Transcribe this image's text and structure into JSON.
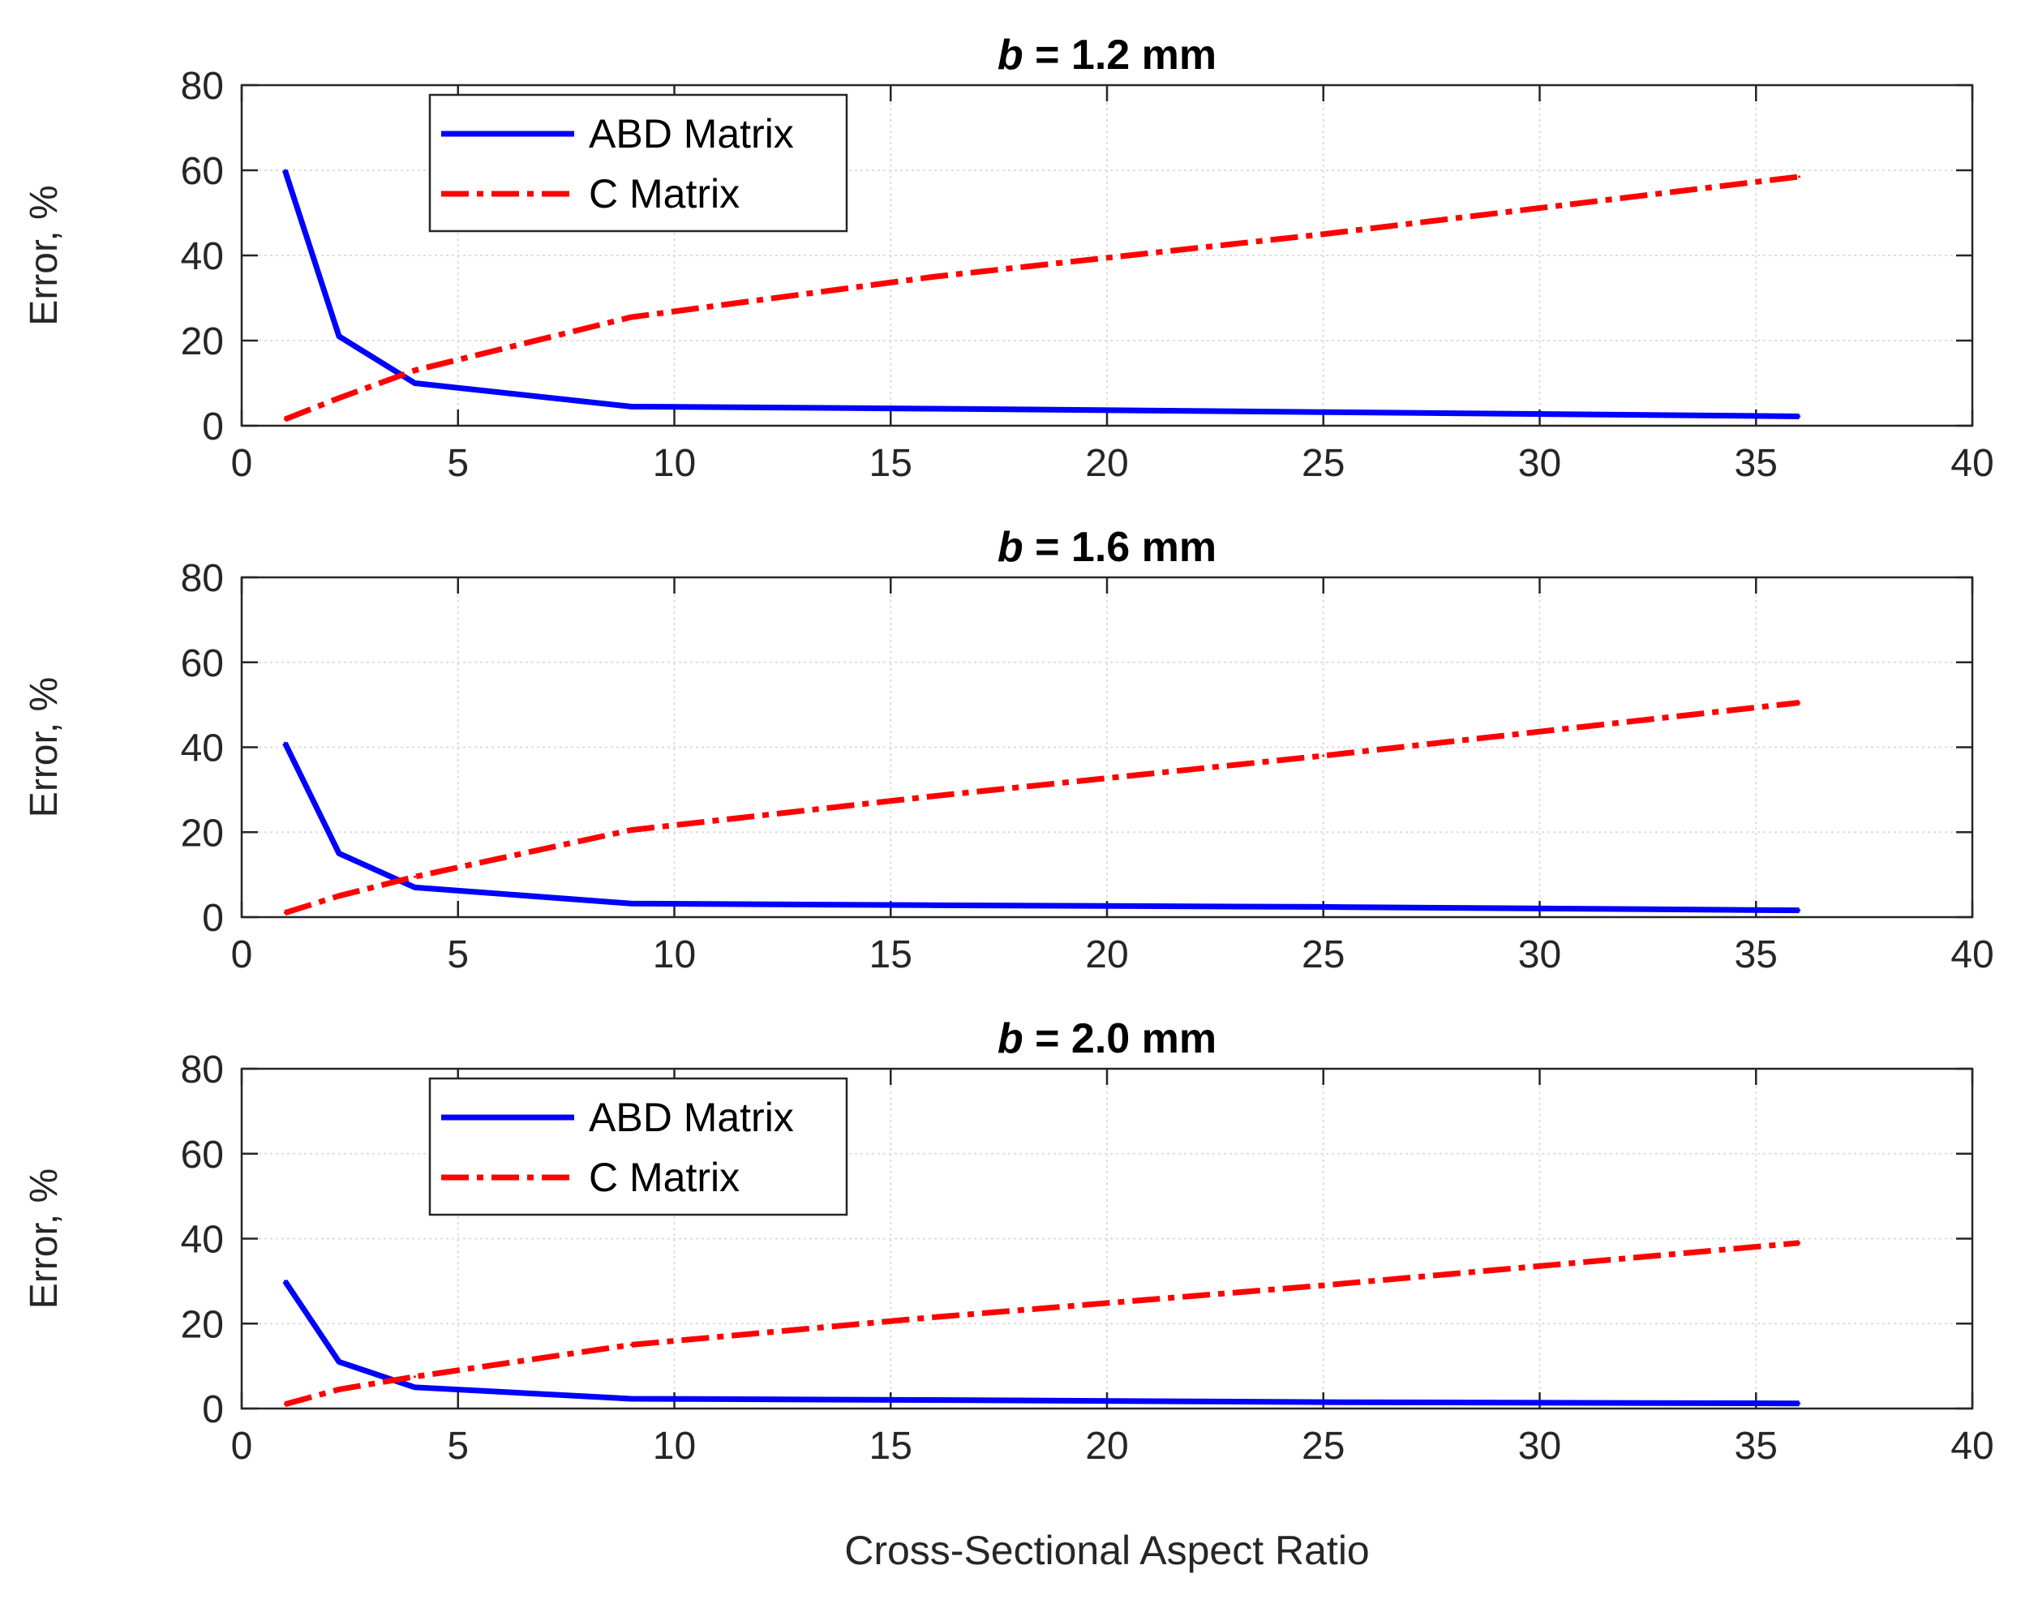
{
  "chart_data": [
    {
      "type": "line",
      "title": "b = 1.2 mm",
      "title_var": "b",
      "title_rest": " = 1.2 mm",
      "xlabel": "",
      "ylabel": "Error, %",
      "xlim": [
        0,
        40
      ],
      "ylim": [
        0,
        80
      ],
      "xticks": [
        0,
        5,
        10,
        15,
        20,
        25,
        30,
        35,
        40
      ],
      "yticks": [
        0,
        20,
        40,
        60,
        80
      ],
      "grid": true,
      "legend": {
        "show": true,
        "placement": "top-left"
      },
      "series": [
        {
          "name": "ABD Matrix",
          "color": "#0000ff",
          "style": "solid",
          "x": [
            1,
            2.25,
            4,
            9,
            16,
            25,
            36
          ],
          "y": [
            60,
            21,
            10,
            4.5,
            4,
            3.2,
            2.2
          ]
        },
        {
          "name": "C Matrix",
          "color": "#ff0000",
          "style": "dashdot",
          "x": [
            1,
            2.25,
            4,
            9,
            16,
            25,
            36
          ],
          "y": [
            1.5,
            6.5,
            13,
            25.5,
            35,
            45,
            58.5
          ]
        }
      ]
    },
    {
      "type": "line",
      "title": "b = 1.6 mm",
      "title_var": "b",
      "title_rest": " = 1.6 mm",
      "xlabel": "",
      "ylabel": "Error, %",
      "xlim": [
        0,
        40
      ],
      "ylim": [
        0,
        80
      ],
      "xticks": [
        0,
        5,
        10,
        15,
        20,
        25,
        30,
        35,
        40
      ],
      "yticks": [
        0,
        20,
        40,
        60,
        80
      ],
      "grid": true,
      "legend": {
        "show": false,
        "placement": "top-left"
      },
      "series": [
        {
          "name": "ABD Matrix",
          "color": "#0000ff",
          "style": "solid",
          "x": [
            1,
            2.25,
            4,
            9,
            16,
            25,
            36
          ],
          "y": [
            41,
            15,
            7,
            3.2,
            2.8,
            2.4,
            1.6
          ]
        },
        {
          "name": "C Matrix",
          "color": "#ff0000",
          "style": "dashdot",
          "x": [
            1,
            2.25,
            4,
            9,
            16,
            25,
            36
          ],
          "y": [
            1,
            5,
            9.5,
            20.5,
            28.5,
            38,
            50.5
          ]
        }
      ]
    },
    {
      "type": "line",
      "title": "b = 2.0 mm",
      "title_var": "b",
      "title_rest": " = 2.0 mm",
      "xlabel": "Cross-Sectional Aspect Ratio",
      "ylabel": "Error, %",
      "xlim": [
        0,
        40
      ],
      "ylim": [
        0,
        80
      ],
      "xticks": [
        0,
        5,
        10,
        15,
        20,
        25,
        30,
        35,
        40
      ],
      "yticks": [
        0,
        20,
        40,
        60,
        80
      ],
      "grid": true,
      "legend": {
        "show": true,
        "placement": "top-left"
      },
      "series": [
        {
          "name": "ABD Matrix",
          "color": "#0000ff",
          "style": "solid",
          "x": [
            1,
            2.25,
            4,
            9,
            16,
            25,
            36
          ],
          "y": [
            30,
            11,
            5,
            2.3,
            2,
            1.5,
            1.2
          ]
        },
        {
          "name": "C Matrix",
          "color": "#ff0000",
          "style": "dashdot",
          "x": [
            1,
            2.25,
            4,
            9,
            16,
            25,
            36
          ],
          "y": [
            1,
            4.5,
            7.5,
            15,
            21.5,
            29,
            39
          ]
        }
      ]
    }
  ]
}
